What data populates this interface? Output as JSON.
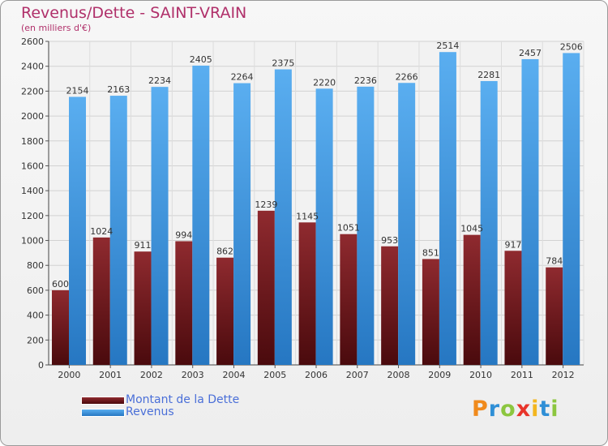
{
  "chart_data": {
    "type": "bar",
    "title": "Revenus/Dette - SAINT-VRAIN",
    "subtitle": "(en milliers d'€)",
    "categories": [
      "2000",
      "2001",
      "2002",
      "2003",
      "2004",
      "2005",
      "2006",
      "2007",
      "2008",
      "2009",
      "2010",
      "2011",
      "2012"
    ],
    "series": [
      {
        "name": "Montant de la Dette",
        "color": "#8b1f24",
        "values": [
          600,
          1024,
          911,
          994,
          862,
          1239,
          1145,
          1051,
          953,
          851,
          1045,
          917,
          784
        ],
        "labels": [
          "600",
          "1024",
          "911",
          "994",
          "862",
          "1239",
          "1145",
          "1051",
          "953",
          "851",
          "1045",
          "917",
          "784"
        ]
      },
      {
        "name": "Revenus",
        "color": "#3c9be6",
        "values": [
          2154,
          2163,
          2234,
          2405,
          2264,
          2375,
          2220,
          2236,
          2266,
          2514,
          2281,
          2457,
          2506
        ],
        "labels": [
          "2154",
          "2163",
          "2234",
          "2405",
          "2264",
          "2375",
          "2220",
          "2236",
          "2266",
          "2514",
          "2281",
          "2457",
          "2506"
        ]
      }
    ],
    "yticks": [
      "0",
      "200",
      "400",
      "600",
      "800",
      "1000",
      "1200",
      "1400",
      "1600",
      "1800",
      "2000",
      "2200",
      "2400",
      "2600"
    ],
    "ylim": [
      0,
      2600
    ],
    "grid": true,
    "legend_position": "bottom-left"
  },
  "logo": {
    "text": "Proxiti",
    "letters": [
      "P",
      "r",
      "o",
      "x",
      "i",
      "t",
      "i"
    ],
    "colors": [
      "#f08a1c",
      "#2f8fd6",
      "#8cc63f",
      "#e8342a",
      "#f3b61f",
      "#2f8fd6",
      "#8cc63f"
    ]
  }
}
